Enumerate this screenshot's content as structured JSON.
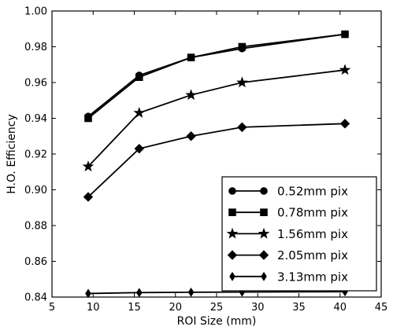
{
  "chart_data": {
    "type": "line",
    "xlabel": "ROI Size (mm)",
    "ylabel": "H.O. Efficiency",
    "xlim": [
      5,
      45
    ],
    "ylim": [
      0.84,
      1.0
    ],
    "xticks": [
      "5",
      "10",
      "15",
      "20",
      "25",
      "30",
      "35",
      "40",
      "45"
    ],
    "yticks": [
      "0.84",
      "0.86",
      "0.88",
      "0.90",
      "0.92",
      "0.94",
      "0.96",
      "0.98",
      "1.00"
    ],
    "grid": false,
    "legend_position": "lower-right",
    "x": [
      9.4,
      15.6,
      21.9,
      28.1,
      40.6
    ],
    "series": [
      {
        "name": "0.52mm pix",
        "marker": "circle",
        "values": [
          0.941,
          0.964,
          0.974,
          0.979,
          0.987
        ]
      },
      {
        "name": "0.78mm pix",
        "marker": "square",
        "values": [
          0.94,
          0.963,
          0.974,
          0.98,
          0.987
        ]
      },
      {
        "name": "1.56mm pix",
        "marker": "star",
        "values": [
          0.913,
          0.943,
          0.953,
          0.96,
          0.967
        ]
      },
      {
        "name": "2.05mm pix",
        "marker": "diamond",
        "values": [
          0.896,
          0.923,
          0.93,
          0.935,
          0.937
        ]
      },
      {
        "name": "3.13mm pix",
        "marker": "thin-diamond",
        "values": [
          0.842,
          0.8425,
          0.8427,
          0.8428,
          0.843
        ]
      }
    ]
  }
}
